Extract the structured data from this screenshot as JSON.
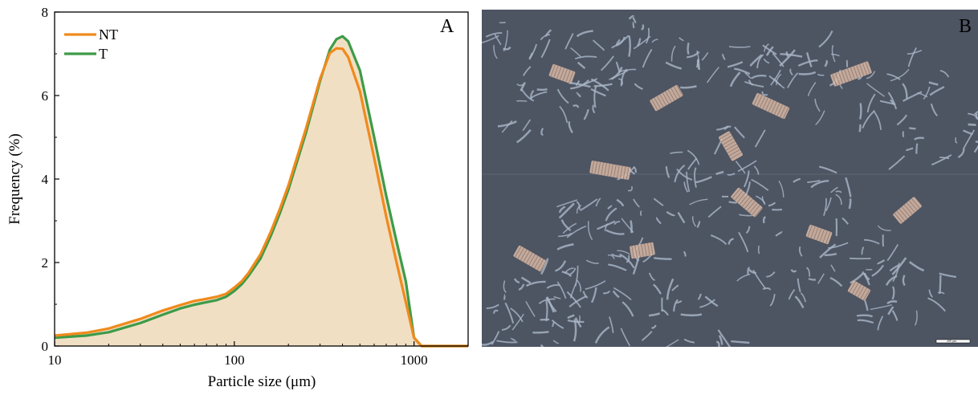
{
  "figure": {
    "panel_a_letter": "A",
    "panel_b_letter": "B",
    "panel_b_scale_text": "200 µm",
    "micrograph": {
      "background_color": "#4d5462",
      "fragment_color": "#a9b6c8",
      "vessel_color": "#d9b9a6"
    }
  },
  "chart_data": {
    "type": "area",
    "xscale": "log",
    "xlabel": "Particle size (μm)",
    "ylabel": "Frequency (%)",
    "xlim": [
      10,
      2000
    ],
    "ylim": [
      0,
      8
    ],
    "xticks": [
      10,
      100,
      1000
    ],
    "xtick_labels": [
      "10",
      "100",
      "1000"
    ],
    "yticks": [
      0,
      2,
      4,
      6,
      8
    ],
    "ytick_labels": [
      "0",
      "2",
      "4",
      "6",
      "8"
    ],
    "grid": false,
    "legend_position": "top-left",
    "fill_color": "#f1dfc4",
    "series": [
      {
        "name": "NT",
        "color": "#f08a1c",
        "points": [
          [
            10,
            0.25
          ],
          [
            15,
            0.32
          ],
          [
            20,
            0.42
          ],
          [
            30,
            0.65
          ],
          [
            40,
            0.85
          ],
          [
            50,
            0.98
          ],
          [
            60,
            1.08
          ],
          [
            70,
            1.13
          ],
          [
            80,
            1.18
          ],
          [
            90,
            1.25
          ],
          [
            100,
            1.4
          ],
          [
            110,
            1.55
          ],
          [
            120,
            1.75
          ],
          [
            140,
            2.2
          ],
          [
            160,
            2.75
          ],
          [
            180,
            3.3
          ],
          [
            200,
            3.85
          ],
          [
            250,
            5.2
          ],
          [
            300,
            6.4
          ],
          [
            340,
            7.02
          ],
          [
            370,
            7.13
          ],
          [
            400,
            7.12
          ],
          [
            430,
            6.92
          ],
          [
            500,
            6.1
          ],
          [
            600,
            4.5
          ],
          [
            700,
            3.1
          ],
          [
            800,
            2.0
          ],
          [
            900,
            1.05
          ],
          [
            1000,
            0.2
          ],
          [
            1100,
            0.0
          ],
          [
            2000,
            0.0
          ]
        ]
      },
      {
        "name": "T",
        "color": "#3d9b48",
        "points": [
          [
            10,
            0.2
          ],
          [
            15,
            0.25
          ],
          [
            20,
            0.33
          ],
          [
            30,
            0.55
          ],
          [
            40,
            0.75
          ],
          [
            50,
            0.9
          ],
          [
            60,
            0.99
          ],
          [
            70,
            1.05
          ],
          [
            80,
            1.1
          ],
          [
            90,
            1.18
          ],
          [
            100,
            1.32
          ],
          [
            110,
            1.48
          ],
          [
            120,
            1.68
          ],
          [
            140,
            2.1
          ],
          [
            160,
            2.65
          ],
          [
            180,
            3.2
          ],
          [
            200,
            3.75
          ],
          [
            250,
            5.1
          ],
          [
            300,
            6.35
          ],
          [
            340,
            7.1
          ],
          [
            370,
            7.35
          ],
          [
            400,
            7.42
          ],
          [
            430,
            7.3
          ],
          [
            500,
            6.6
          ],
          [
            600,
            5.0
          ],
          [
            700,
            3.6
          ],
          [
            800,
            2.5
          ],
          [
            900,
            1.55
          ],
          [
            1000,
            0.2
          ],
          [
            1100,
            0.0
          ],
          [
            2000,
            0.0
          ]
        ]
      }
    ]
  }
}
